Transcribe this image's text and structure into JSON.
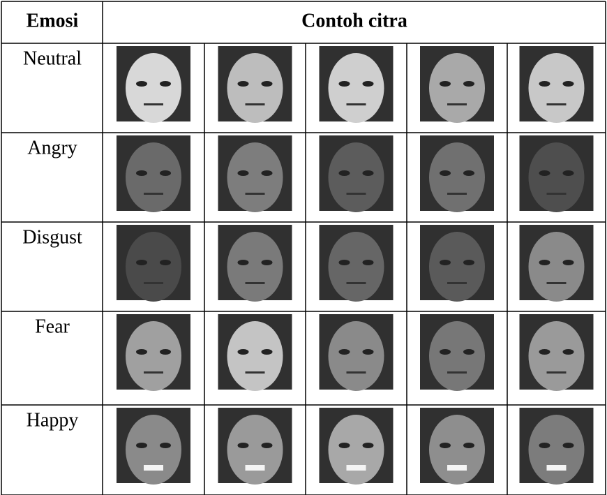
{
  "table": {
    "header": [
      "Emosi",
      "Contoh citra"
    ],
    "rows": [
      "Neutral",
      "Angry",
      "Disgust",
      "Fear",
      "Happy"
    ]
  }
}
